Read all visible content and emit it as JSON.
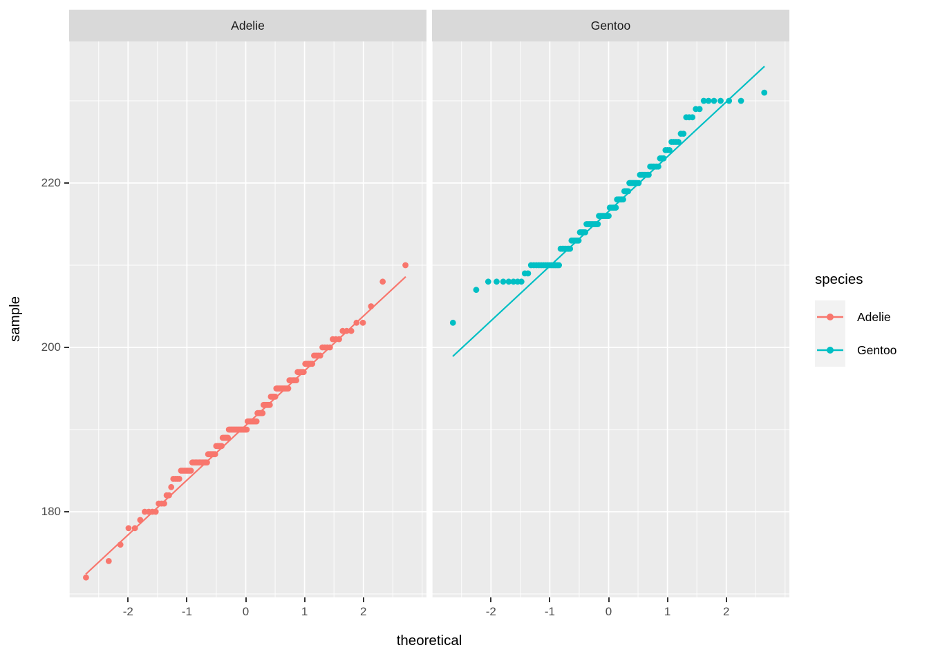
{
  "figure": {
    "background": "#ffffff"
  },
  "strips": {
    "adelie": "Adelie",
    "gentoo": "Gentoo"
  },
  "axes": {
    "x": {
      "title": "theoretical",
      "tick_labels": [
        "-2",
        "-1",
        "0",
        "1",
        "2"
      ],
      "tick_values": [
        -2,
        -1,
        0,
        1,
        2
      ],
      "minor_values": [
        -3,
        -2.5,
        -1.5,
        -0.5,
        0.5,
        1.5,
        2.5,
        3
      ]
    },
    "y": {
      "title": "sample",
      "tick_labels": [
        "180",
        "200",
        "220"
      ],
      "tick_values": [
        180,
        200,
        220
      ],
      "minor_values": [
        170,
        190,
        210,
        230
      ]
    }
  },
  "legend": {
    "title": "species",
    "entries": [
      {
        "label": "Adelie",
        "color": "#F8766D"
      },
      {
        "label": "Gentoo",
        "color": "#00BFC4"
      }
    ]
  },
  "style": {
    "panel_bg": "#EBEBEB",
    "strip_bg": "#D9D9D9",
    "grid_color": "#FFFFFF",
    "axis_text_color": "#4D4D4D",
    "tick_mark_color": "#333333",
    "strip_text_color": "#1A1A1A",
    "legend_key_bg": "#F2F2F2",
    "adelie_color": "#F8766D",
    "gentoo_color": "#00BFC4"
  },
  "chart_data": {
    "type": "scatter",
    "subtype": "normal-qq-plot",
    "title": "",
    "xlabel": "theoretical",
    "ylabel": "sample",
    "x_ticks": [
      -2,
      -1,
      0,
      1,
      2
    ],
    "y_ticks": [
      180,
      200,
      220
    ],
    "x_domain": [
      -3.0,
      3.07
    ],
    "y_domain": [
      169.6,
      237.4
    ],
    "grid": "on",
    "legend_position": "right",
    "facets": [
      {
        "label": "Adelie",
        "color": "#F8766D",
        "n": 151,
        "sample_value_counts": [
          [
            172,
            1
          ],
          [
            174,
            1
          ],
          [
            176,
            1
          ],
          [
            178,
            2
          ],
          [
            179,
            1
          ],
          [
            180,
            4
          ],
          [
            181,
            3
          ],
          [
            182,
            2
          ],
          [
            183,
            1
          ],
          [
            184,
            4
          ],
          [
            185,
            7
          ],
          [
            186,
            12
          ],
          [
            187,
            7
          ],
          [
            188,
            6
          ],
          [
            189,
            6
          ],
          [
            190,
            19
          ],
          [
            191,
            10
          ],
          [
            192,
            6
          ],
          [
            193,
            7
          ],
          [
            194,
            5
          ],
          [
            195,
            11
          ],
          [
            196,
            6
          ],
          [
            197,
            5
          ],
          [
            198,
            5
          ],
          [
            199,
            4
          ],
          [
            200,
            4
          ],
          [
            201,
            3
          ],
          [
            202,
            3
          ],
          [
            203,
            2
          ],
          [
            205,
            1
          ],
          [
            208,
            1
          ],
          [
            210,
            1
          ]
        ],
        "quartiles": {
          "q1": 186,
          "median": 190,
          "q3": 195
        },
        "qq_line": {
          "x1": -2.72,
          "y1": 172.4,
          "x2": 2.72,
          "y2": 208.6
        }
      },
      {
        "label": "Gentoo",
        "color": "#00BFC4",
        "n": 123,
        "sample_value_counts": [
          [
            203,
            1
          ],
          [
            207,
            1
          ],
          [
            208,
            7
          ],
          [
            209,
            2
          ],
          [
            210,
            14
          ],
          [
            212,
            7
          ],
          [
            213,
            6
          ],
          [
            214,
            5
          ],
          [
            215,
            10
          ],
          [
            216,
            9
          ],
          [
            217,
            6
          ],
          [
            218,
            6
          ],
          [
            219,
            4
          ],
          [
            220,
            8
          ],
          [
            221,
            7
          ],
          [
            222,
            6
          ],
          [
            223,
            3
          ],
          [
            224,
            3
          ],
          [
            225,
            4
          ],
          [
            226,
            2
          ],
          [
            228,
            3
          ],
          [
            229,
            2
          ],
          [
            230,
            6
          ],
          [
            231,
            1
          ]
        ],
        "quartiles": {
          "q1": 212,
          "median": 216,
          "q3": 221
        },
        "qq_line": {
          "x1": -2.65,
          "y1": 198.9,
          "x2": 2.65,
          "y2": 234.2
        }
      }
    ]
  }
}
